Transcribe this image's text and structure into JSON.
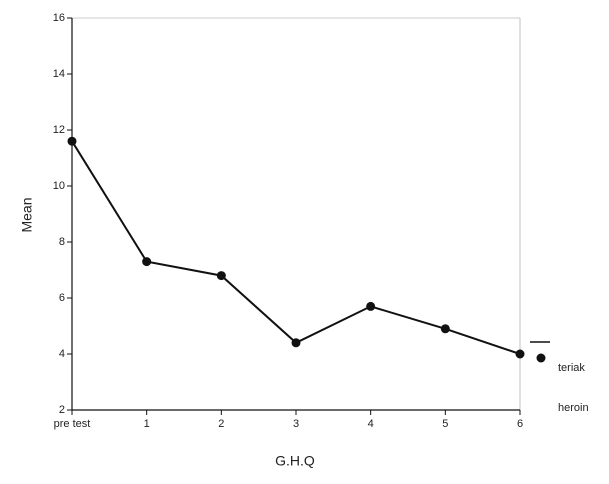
{
  "chart_data": {
    "type": "line",
    "x_label": "G.H.Q",
    "y_label": "Mean",
    "categories": [
      "pre test",
      "1",
      "2",
      "3",
      "4",
      "5",
      "6"
    ],
    "series": [
      {
        "name": "teriak",
        "color": "#111111",
        "values": [
          11.6,
          7.3,
          6.8,
          4.4,
          5.7,
          4.9,
          4.0
        ]
      },
      {
        "name": "heroin",
        "color": "#111111",
        "values": [
          null,
          null,
          null,
          null,
          null,
          null,
          null
        ]
      }
    ],
    "ylim": [
      2,
      16
    ],
    "yticks": [
      2,
      4,
      6,
      8,
      10,
      12,
      14,
      16
    ],
    "grid": false
  }
}
